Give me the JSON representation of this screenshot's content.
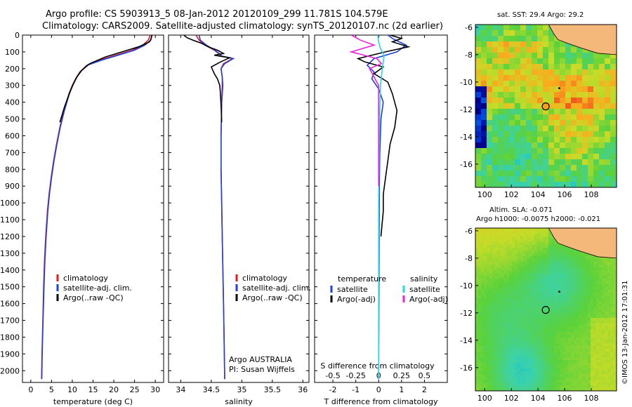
{
  "title_line1": "Argo profile: CS 5903913_5 08-Jan-2012 20120109_299 11.781S 104.579E",
  "title_line2": "Climatology: CARS2009. Satellite-adjusted climatology: synTS_20120107.nc (2d earlier)",
  "sst_title": "sat. SST: 29.4 Argo: 29.2",
  "sla_title1": "Altim. SLA: -0.071",
  "sla_title2": "Argo h1000: -0.0075 h2000: -0.021",
  "side_label": "©IMOS 13-Jan-2012 17:01:31",
  "colors": {
    "climatology": "#e41a1c",
    "satellite": "#1f3fe0",
    "argo": "#000000",
    "sal_satellite": "#22d8e8",
    "sal_argo": "#ee22dd",
    "land": "#f4b87a",
    "marker": "#000000"
  },
  "chart_data": [
    {
      "type": "line",
      "xlabel": "temperature (deg C)",
      "ylabel": "",
      "xticks": [
        0,
        5,
        10,
        15,
        20,
        25,
        30
      ],
      "xlim": [
        -2,
        32
      ],
      "yticks": [
        0,
        100,
        200,
        300,
        400,
        500,
        600,
        700,
        800,
        900,
        1000,
        1100,
        1200,
        1300,
        1400,
        1500,
        1600,
        1700,
        1800,
        1900,
        2000
      ],
      "ylim": [
        2070,
        0
      ],
      "legend": [
        "climatology",
        "satellite-adj. clim.",
        "Argo(..raw -QC)"
      ],
      "series": [
        {
          "name": "climatology",
          "x": [
            28.8,
            28.3,
            27.0,
            24.5,
            20.5,
            16.5,
            13.5,
            11.8,
            10.8,
            10.0,
            9.2,
            8.0,
            7.0,
            6.2,
            5.5,
            4.9,
            4.4,
            4.0,
            3.6,
            3.3,
            3.1,
            2.9,
            2.7,
            2.6
          ],
          "y": [
            0,
            30,
            60,
            90,
            120,
            150,
            180,
            220,
            260,
            300,
            350,
            450,
            550,
            650,
            750,
            850,
            950,
            1050,
            1200,
            1350,
            1500,
            1700,
            1900,
            2050
          ]
        },
        {
          "name": "satellite-adj. clim.",
          "x": [
            29.2,
            28.9,
            27.5,
            25.0,
            21.0,
            17.0,
            13.6,
            11.9,
            10.9,
            10.1,
            9.3,
            8.1,
            7.1,
            6.3,
            5.6,
            5.0,
            4.5,
            4.1,
            3.7,
            3.4,
            3.2,
            2.95,
            2.75,
            2.65
          ],
          "y": [
            0,
            30,
            60,
            90,
            120,
            150,
            180,
            220,
            260,
            300,
            350,
            450,
            550,
            650,
            750,
            850,
            950,
            1050,
            1200,
            1350,
            1500,
            1700,
            1900,
            2050
          ]
        },
        {
          "name": "Argo(..raw -QC)",
          "x": [
            29.2,
            29.0,
            28.6,
            26.0,
            22.0,
            18.0,
            14.2,
            12.3,
            11.1,
            10.3,
            9.4,
            8.1,
            7.0
          ],
          "y": [
            0,
            20,
            40,
            70,
            100,
            130,
            170,
            210,
            250,
            290,
            340,
            430,
            520
          ]
        }
      ]
    },
    {
      "type": "line",
      "xlabel": "salinity",
      "xticks": [
        34,
        34.5,
        35,
        35.5,
        36
      ],
      "xlim": [
        33.8,
        36.1
      ],
      "legend": [
        "climatology",
        "satellite-adj. clim.",
        "Argo(..raw -QC)"
      ],
      "annotation": [
        "Argo AUSTRALIA",
        "PI: Susan Wijffels"
      ],
      "series": [
        {
          "name": "climatology",
          "x": [
            34.25,
            34.3,
            34.4,
            34.55,
            34.62,
            34.66,
            34.85,
            34.7,
            34.66,
            34.68,
            34.68,
            34.67,
            34.66,
            34.66,
            34.67,
            34.68,
            34.69,
            34.7,
            34.71,
            34.72
          ],
          "y": [
            0,
            30,
            60,
            90,
            110,
            125,
            140,
            170,
            200,
            250,
            300,
            400,
            600,
            800,
            1000,
            1200,
            1400,
            1600,
            1800,
            2050
          ]
        },
        {
          "name": "satellite-adj. clim.",
          "x": [
            34.3,
            34.32,
            34.42,
            34.56,
            34.63,
            34.67,
            34.86,
            34.72,
            34.66,
            34.68,
            34.69,
            34.67,
            34.66,
            34.66,
            34.67,
            34.68,
            34.69,
            34.7,
            34.71,
            34.72
          ],
          "y": [
            0,
            30,
            60,
            90,
            110,
            125,
            140,
            170,
            200,
            250,
            300,
            400,
            600,
            800,
            1000,
            1200,
            1400,
            1600,
            1800,
            2050
          ]
        },
        {
          "name": "Argo(..raw -QC)",
          "x": [
            34.05,
            34.1,
            34.2,
            34.35,
            34.45,
            34.6,
            34.7,
            34.55,
            34.8,
            34.65,
            34.5,
            34.55,
            34.6,
            34.64,
            34.65,
            34.66,
            34.67
          ],
          "y": [
            0,
            15,
            30,
            50,
            70,
            90,
            110,
            120,
            135,
            160,
            190,
            230,
            260,
            300,
            350,
            420,
            520
          ]
        }
      ]
    },
    {
      "type": "line",
      "xlabel": "T difference from climatology",
      "xlabel2": "S difference from climatology",
      "xticks": [
        -2,
        -1,
        0,
        1,
        2
      ],
      "xticks2": [
        -0.5,
        -0.25,
        0,
        0.25,
        0.5
      ],
      "xlim": [
        -2.8,
        3.0
      ],
      "legend_temperature_title": "temperature",
      "legend_salinity_title": "salinity",
      "legend": [
        "satellite",
        "Argo(-adj)",
        "satellite",
        "Argo(-adj)"
      ],
      "series": [
        {
          "name": "satellite",
          "x": [
            0.4,
            0.6,
            1.2,
            0.8,
            -0.2,
            -0.5,
            -0.2,
            -0.3,
            0.0,
            0.2,
            0.1,
            0.05,
            0.03,
            0.02,
            0.01,
            0.0
          ],
          "y": [
            0,
            20,
            60,
            100,
            140,
            180,
            220,
            260,
            320,
            400,
            500,
            700,
            900,
            1200,
            1600,
            2050
          ]
        },
        {
          "name": "Argo(-adj)",
          "x": [
            0.5,
            1.0,
            0.6,
            1.3,
            0.3,
            -0.9,
            -0.6,
            0.2,
            -0.2,
            0.4,
            0.6,
            0.8,
            0.7,
            0.5,
            0.4,
            0.3,
            0.2,
            0.2,
            0.1
          ],
          "y": [
            0,
            20,
            40,
            70,
            100,
            140,
            160,
            190,
            230,
            280,
            350,
            450,
            550,
            650,
            750,
            850,
            950,
            1050,
            1200
          ]
        },
        {
          "name": "satellite",
          "x": [
            -0.01,
            0.0,
            0.02,
            0.06,
            0.04,
            0.02,
            0.01,
            0.0,
            0.0
          ],
          "y": [
            0,
            40,
            80,
            120,
            200,
            300,
            500,
            1000,
            2050
          ]
        },
        {
          "name": "Argo(-adj)",
          "x": [
            -0.3,
            -0.2,
            -0.05,
            -0.3,
            -0.02,
            0.03,
            -0.1,
            0.0,
            0.0,
            0.0
          ],
          "y": [
            0,
            30,
            60,
            100,
            140,
            170,
            200,
            300,
            500,
            900
          ]
        }
      ]
    },
    {
      "type": "heatmap",
      "xticks": [
        100,
        102,
        104,
        106,
        108
      ],
      "yticks": [
        -6,
        -8,
        -10,
        -12,
        -14,
        -16
      ],
      "xlim": [
        99.3,
        109.9
      ],
      "ylim": [
        -17.7,
        -5.8
      ],
      "marker": {
        "lon": 104.579,
        "lat": -11.781
      }
    },
    {
      "type": "heatmap",
      "xticks": [
        100,
        102,
        104,
        106,
        108
      ],
      "yticks": [
        -6,
        -8,
        -10,
        -12,
        -14,
        -16
      ],
      "xlim": [
        99.3,
        109.9
      ],
      "ylim": [
        -17.7,
        -5.8
      ],
      "marker": {
        "lon": 104.579,
        "lat": -11.781
      }
    }
  ]
}
